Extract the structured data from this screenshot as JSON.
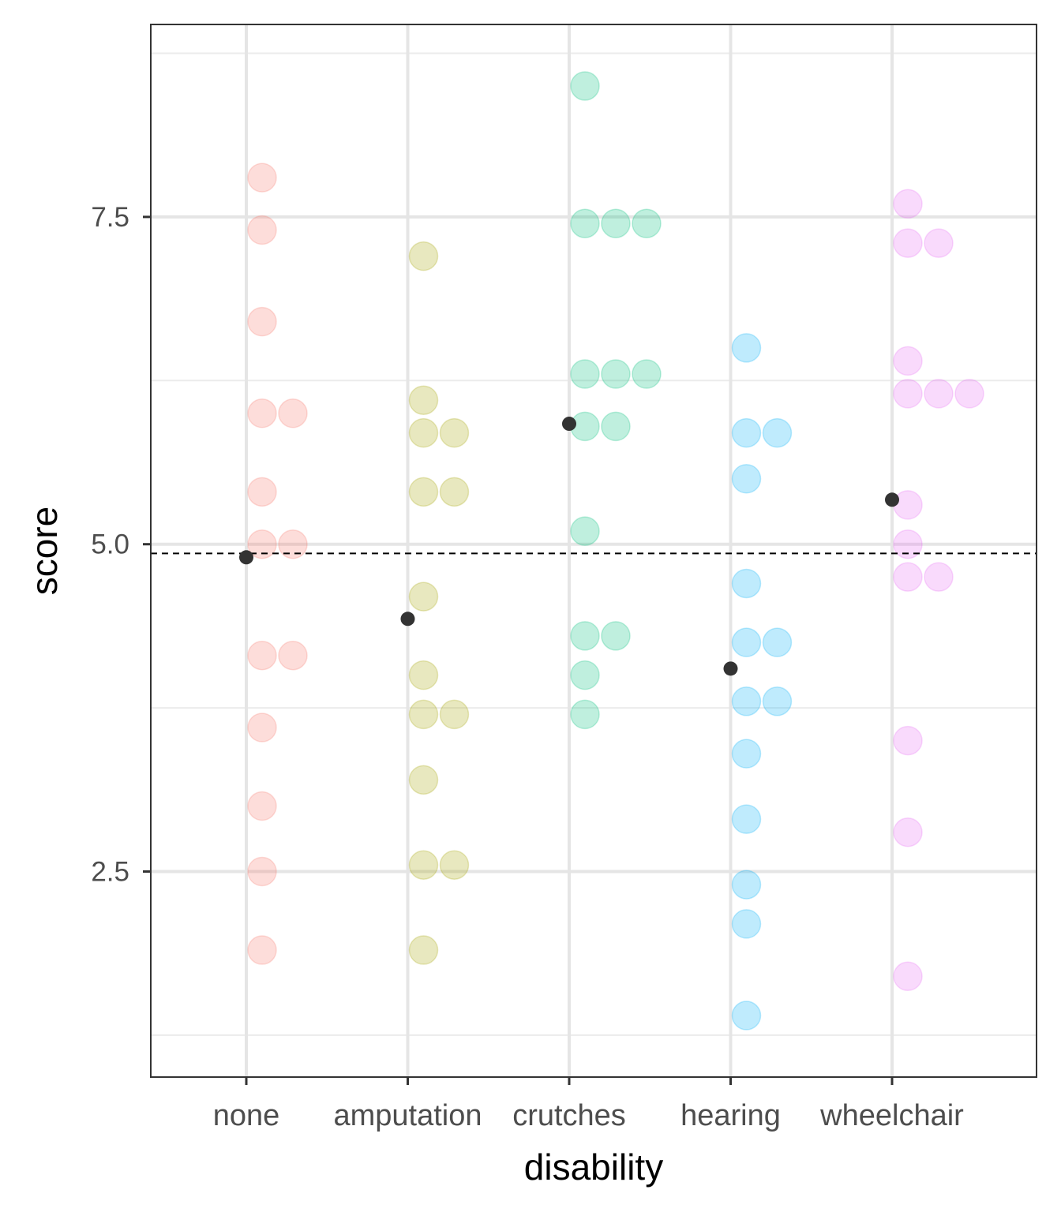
{
  "chart_data": {
    "type": "scatter",
    "subtype": "dotplot with group means",
    "xlabel": "disability",
    "ylabel": "score",
    "categories": [
      "none",
      "amputation",
      "crutches",
      "hearing",
      "wheelchair"
    ],
    "ylim": [
      0.93,
      8.97
    ],
    "yticks": [
      2.5,
      5.0,
      7.5
    ],
    "ytick_labels": [
      "2.5",
      "5.0",
      "7.5"
    ],
    "y_minor_gridlines": [
      1.25,
      3.75,
      6.25,
      8.75
    ],
    "grid": true,
    "colors": [
      "#F8766D",
      "#A3A500",
      "#00BF7D",
      "#00B0F6",
      "#E76BF3"
    ],
    "series": [
      {
        "name": "none",
        "values": [
          7.8,
          7.4,
          6.7,
          6.0,
          6.0,
          5.4,
          5.0,
          5.0,
          4.15,
          4.15,
          3.6,
          3.0,
          2.5,
          1.9
        ],
        "mean": 4.9
      },
      {
        "name": "amputation",
        "values": [
          7.2,
          6.1,
          5.85,
          5.85,
          5.4,
          5.4,
          4.6,
          4.0,
          3.7,
          3.7,
          3.2,
          2.55,
          2.55,
          1.9
        ],
        "mean": 4.43
      },
      {
        "name": "crutches",
        "values": [
          8.5,
          7.45,
          7.45,
          7.45,
          6.3,
          6.3,
          6.3,
          5.9,
          5.9,
          5.1,
          4.3,
          4.3,
          4.0,
          3.7
        ],
        "mean": 5.92
      },
      {
        "name": "hearing",
        "values": [
          6.5,
          5.85,
          5.85,
          5.5,
          4.7,
          4.25,
          4.25,
          3.8,
          3.8,
          3.4,
          2.9,
          2.4,
          2.1,
          1.4
        ],
        "mean": 4.05
      },
      {
        "name": "wheelchair",
        "values": [
          7.6,
          7.3,
          7.3,
          6.4,
          6.15,
          6.15,
          6.15,
          5.3,
          5.0,
          4.75,
          4.75,
          3.5,
          2.8,
          1.7
        ],
        "mean": 5.34
      }
    ],
    "grand_mean_line": 4.93
  }
}
